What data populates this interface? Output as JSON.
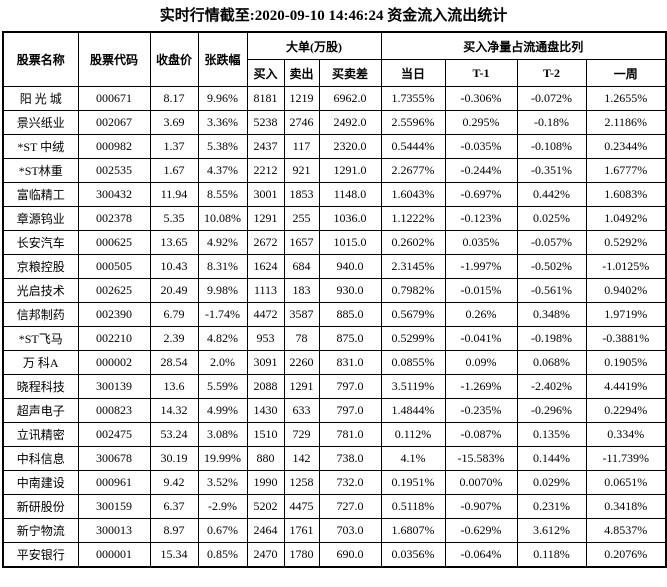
{
  "title": "实时行情截至:2020-09-10 14:46:24 资金流入流出统计",
  "colors": {
    "link_blue": "#155a9e",
    "border": "#000000",
    "text": "#000000",
    "background": "#ffffff"
  },
  "table": {
    "headers": {
      "name": "股票名称",
      "code": "股票代码",
      "close": "收盘价",
      "change": "张跌幅",
      "big_order_group": "大单(万股)",
      "buy": "买入",
      "sell": "卖出",
      "diff": "买卖差",
      "ratio_group": "买入净量占流通盘比列",
      "today": "当日",
      "t1": "T-1",
      "t2": "T-2",
      "week": "一周"
    },
    "column_keys": [
      "name",
      "code",
      "close",
      "change",
      "buy",
      "sell",
      "diff",
      "today",
      "t1",
      "t2",
      "week"
    ],
    "rows": [
      [
        "阳 光 城",
        "000671",
        "8.17",
        "9.96%",
        "8181",
        "1219",
        "6962.0",
        "1.7355%",
        "-0.306%",
        "-0.072%",
        "1.2655%"
      ],
      [
        "景兴纸业",
        "002067",
        "3.69",
        "3.36%",
        "5238",
        "2746",
        "2492.0",
        "2.5596%",
        "0.295%",
        "-0.18%",
        "2.1186%"
      ],
      [
        "*ST 中绒",
        "000982",
        "1.37",
        "5.38%",
        "2437",
        "117",
        "2320.0",
        "0.5444%",
        "-0.035%",
        "-0.108%",
        "0.2344%"
      ],
      [
        "*ST林重",
        "002535",
        "1.67",
        "4.37%",
        "2212",
        "921",
        "1291.0",
        "2.2677%",
        "-0.244%",
        "-0.351%",
        "1.6777%"
      ],
      [
        "富临精工",
        "300432",
        "11.94",
        "8.55%",
        "3001",
        "1853",
        "1148.0",
        "1.6043%",
        "-0.697%",
        "0.442%",
        "1.6083%"
      ],
      [
        "章源钨业",
        "002378",
        "5.35",
        "10.08%",
        "1291",
        "255",
        "1036.0",
        "1.1222%",
        "-0.123%",
        "0.025%",
        "1.0492%"
      ],
      [
        "长安汽车",
        "000625",
        "13.65",
        "4.92%",
        "2672",
        "1657",
        "1015.0",
        "0.2602%",
        "0.035%",
        "-0.057%",
        "0.5292%"
      ],
      [
        "京粮控股",
        "000505",
        "10.43",
        "8.31%",
        "1624",
        "684",
        "940.0",
        "2.3145%",
        "-1.997%",
        "-0.502%",
        "-1.0125%"
      ],
      [
        "光启技术",
        "002625",
        "20.49",
        "9.98%",
        "1113",
        "183",
        "930.0",
        "0.7982%",
        "-0.015%",
        "-0.561%",
        "0.9402%"
      ],
      [
        "信邦制药",
        "002390",
        "6.79",
        "-1.74%",
        "4472",
        "3587",
        "885.0",
        "0.5679%",
        "0.26%",
        "0.348%",
        "1.9719%"
      ],
      [
        "*ST飞马",
        "002210",
        "2.39",
        "4.82%",
        "953",
        "78",
        "875.0",
        "0.5299%",
        "-0.041%",
        "-0.198%",
        "-0.3881%"
      ],
      [
        "万 科A",
        "000002",
        "28.54",
        "2.0%",
        "3091",
        "2260",
        "831.0",
        "0.0855%",
        "0.09%",
        "0.068%",
        "0.1905%"
      ],
      [
        "晓程科技",
        "300139",
        "13.6",
        "5.59%",
        "2088",
        "1291",
        "797.0",
        "3.5119%",
        "-1.269%",
        "-2.402%",
        "4.4419%"
      ],
      [
        "超声电子",
        "000823",
        "14.32",
        "4.99%",
        "1430",
        "633",
        "797.0",
        "1.4844%",
        "-0.235%",
        "-0.296%",
        "0.2294%"
      ],
      [
        "立讯精密",
        "002475",
        "53.24",
        "3.08%",
        "1510",
        "729",
        "781.0",
        "0.112%",
        "-0.087%",
        "0.135%",
        "0.334%"
      ],
      [
        "中科信息",
        "300678",
        "30.19",
        "19.99%",
        "880",
        "142",
        "738.0",
        "4.1%",
        "-15.583%",
        "0.144%",
        "-11.739%"
      ],
      [
        "中南建设",
        "000961",
        "9.42",
        "3.52%",
        "1990",
        "1258",
        "732.0",
        "0.1951%",
        "0.0070%",
        "0.029%",
        "0.0651%"
      ],
      [
        "新研股份",
        "300159",
        "6.37",
        "-2.9%",
        "5202",
        "4475",
        "727.0",
        "0.5118%",
        "-0.907%",
        "0.231%",
        "0.3418%"
      ],
      [
        "新宁物流",
        "300013",
        "8.97",
        "0.67%",
        "2464",
        "1761",
        "703.0",
        "1.6807%",
        "-0.629%",
        "3.612%",
        "4.8537%"
      ],
      [
        "平安银行",
        "000001",
        "15.34",
        "0.85%",
        "2470",
        "1780",
        "690.0",
        "0.0356%",
        "-0.064%",
        "0.118%",
        "0.2076%"
      ]
    ]
  }
}
